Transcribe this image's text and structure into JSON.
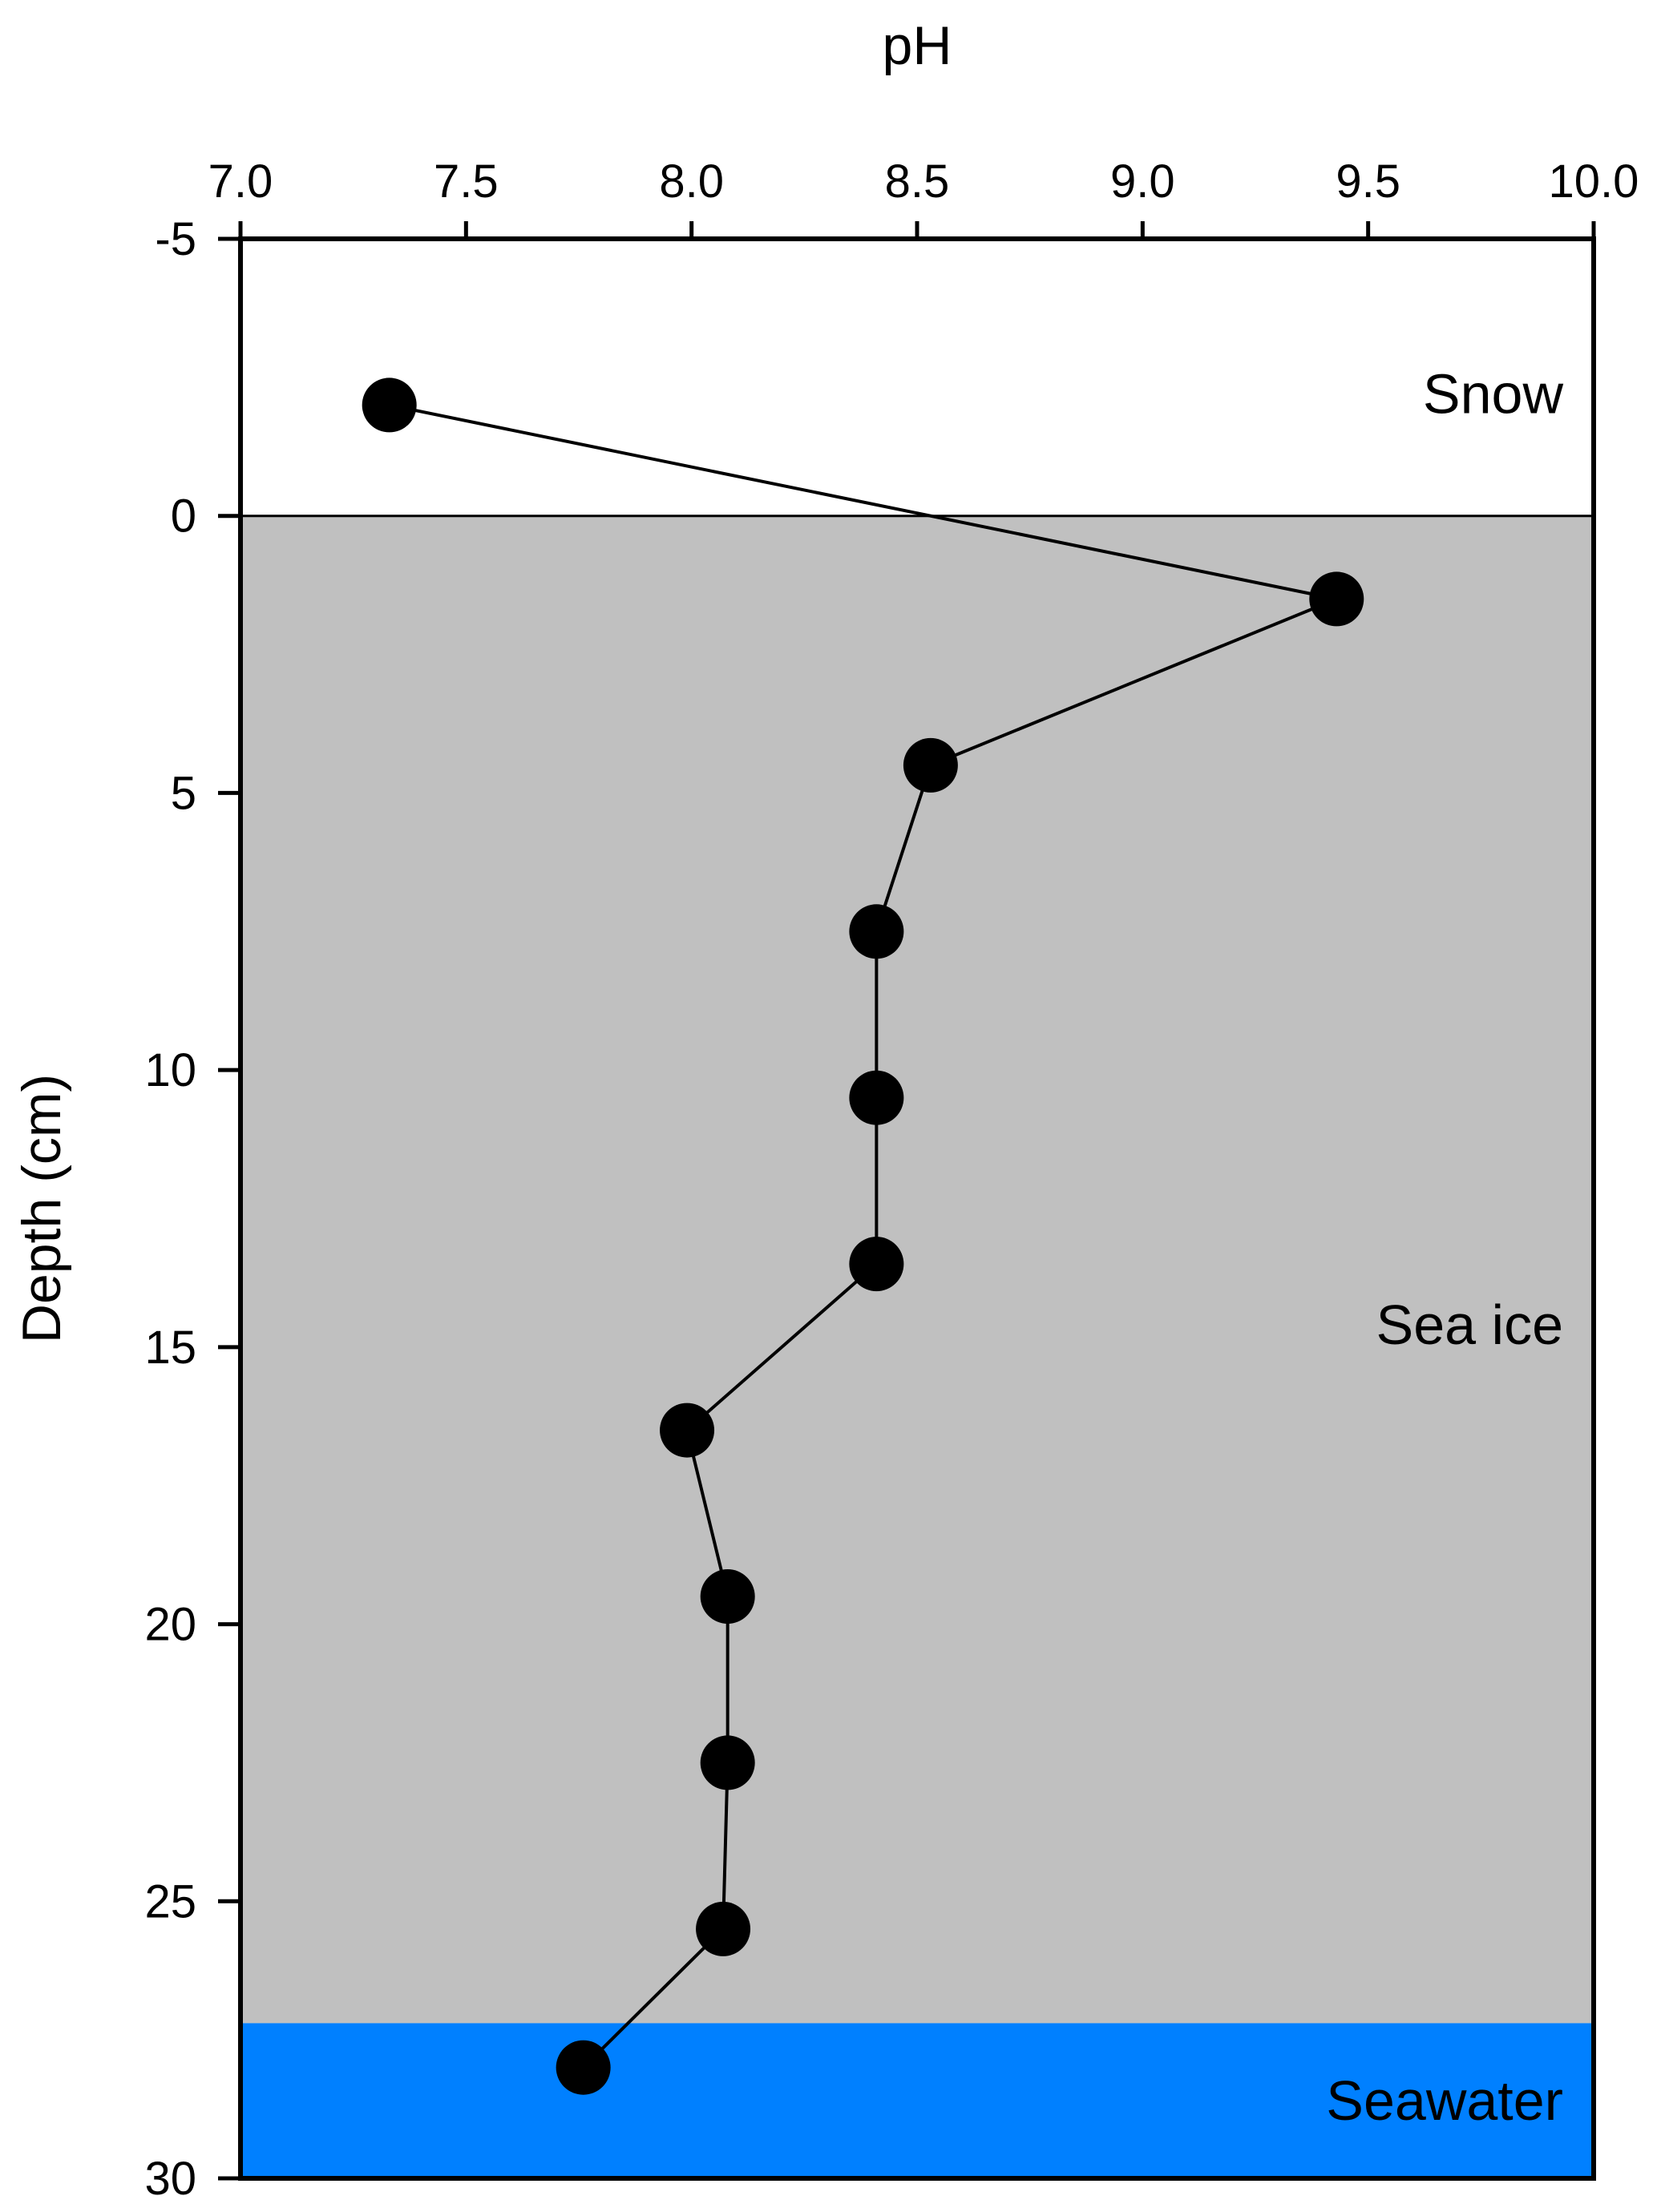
{
  "chart_data": {
    "type": "scatter",
    "title": "",
    "xlabel": "pH",
    "ylabel": "Depth (cm)",
    "x_axis_position": "top",
    "xlim": [
      7.0,
      10.0
    ],
    "ylim": [
      -5,
      30
    ],
    "y_inverted": true,
    "grid": false,
    "x_ticks": [
      7.0,
      7.5,
      8.0,
      8.5,
      9.0,
      9.5,
      10.0
    ],
    "x_tick_labels": [
      "7.0",
      "7.5",
      "8.0",
      "8.5",
      "9.0",
      "9.5",
      "10.0"
    ],
    "y_ticks": [
      -5,
      0,
      5,
      10,
      15,
      20,
      25,
      30
    ],
    "y_tick_labels": [
      "-5",
      "0",
      "5",
      "10",
      "15",
      "20",
      "25",
      "30"
    ],
    "series": [
      {
        "points": [
          {
            "x": 7.33,
            "y": -2.0
          },
          {
            "x": 9.43,
            "y": 1.5
          },
          {
            "x": 8.53,
            "y": 4.5
          },
          {
            "x": 8.41,
            "y": 7.5
          },
          {
            "x": 8.41,
            "y": 10.5
          },
          {
            "x": 8.41,
            "y": 13.5
          },
          {
            "x": 7.99,
            "y": 16.5
          },
          {
            "x": 8.08,
            "y": 19.5
          },
          {
            "x": 8.08,
            "y": 22.5
          },
          {
            "x": 8.07,
            "y": 25.5
          },
          {
            "x": 7.76,
            "y": 28.0
          }
        ],
        "color": "#000000",
        "marker": "filled-circle",
        "connected": true
      }
    ],
    "regions": [
      {
        "label": "Snow",
        "y_range": [
          -5,
          0
        ],
        "color": "#ffffff"
      },
      {
        "label": "Sea ice",
        "y_range": [
          0,
          27.2
        ],
        "color": "#c0c0c0"
      },
      {
        "label": "Seawater",
        "y_range": [
          27.2,
          30
        ],
        "color": "#0080ff"
      }
    ]
  }
}
